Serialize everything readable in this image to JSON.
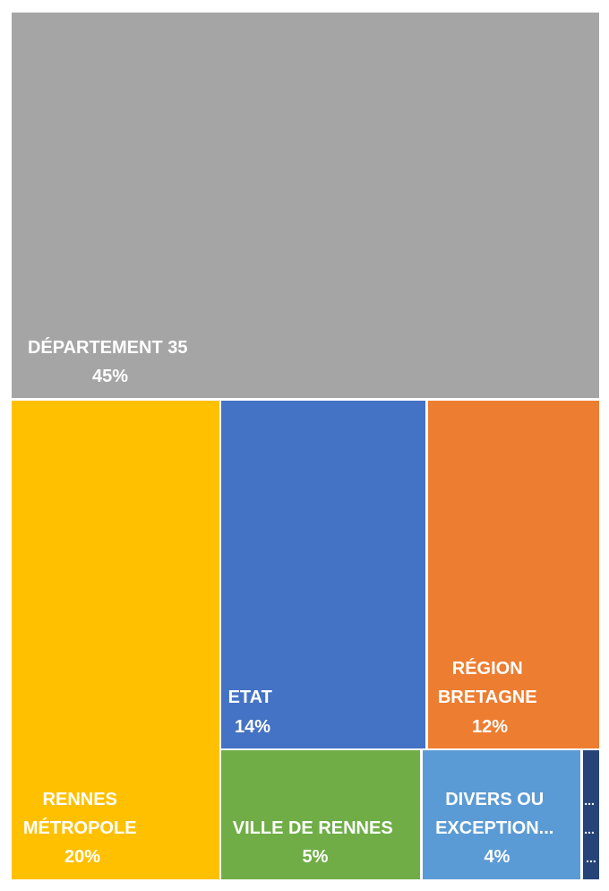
{
  "chart_data": {
    "type": "treemap",
    "title": "",
    "items": [
      {
        "label": "DÉPARTEMENT 35",
        "value_label": "45%",
        "value": 45,
        "color": "#A5A5A5"
      },
      {
        "label": "RENNES MÉTROPOLE",
        "value_label": "20%",
        "value": 20,
        "color": "#FFC000"
      },
      {
        "label": "ETAT",
        "value_label": "14%",
        "value": 14,
        "color": "#4472C4"
      },
      {
        "label": "RÉGION BRETAGNE",
        "value_label": "12%",
        "value": 12,
        "color": "#ED7D31"
      },
      {
        "label": "VILLE DE RENNES",
        "value_label": "5%",
        "value": 5,
        "color": "#70AD47"
      },
      {
        "label": "DIVERS OU EXCEPTION...",
        "value_label": "4%",
        "value": 4,
        "color": "#5B9BD5"
      },
      {
        "label": "...",
        "value_label": "",
        "value": null,
        "color": "#264478"
      }
    ]
  }
}
